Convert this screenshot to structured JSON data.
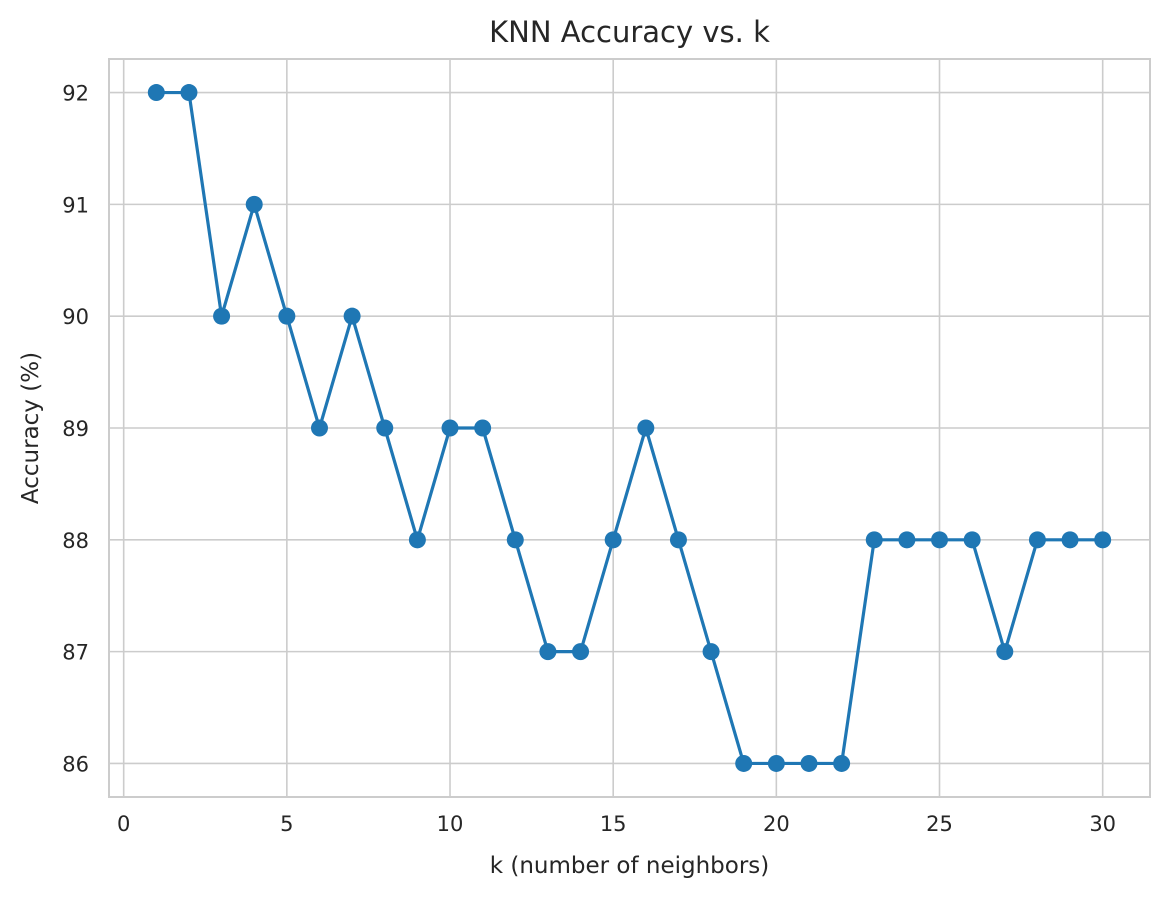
{
  "chart_data": {
    "type": "line",
    "title": "KNN Accuracy vs. k",
    "xlabel": "k (number of neighbors)",
    "ylabel": "Accuracy (%)",
    "xlim": [
      -0.45,
      31.45
    ],
    "ylim": [
      85.7,
      92.3
    ],
    "xticks": [
      0,
      5,
      10,
      15,
      20,
      25,
      30
    ],
    "yticks": [
      86,
      87,
      88,
      89,
      90,
      91,
      92
    ],
    "grid": true,
    "color": "#1f77b4",
    "marker": "circle",
    "x": [
      1,
      2,
      3,
      4,
      5,
      6,
      7,
      8,
      9,
      10,
      11,
      12,
      13,
      14,
      15,
      16,
      17,
      18,
      19,
      20,
      21,
      22,
      23,
      24,
      25,
      26,
      27,
      28,
      29,
      30
    ],
    "y": [
      92,
      92,
      90,
      91,
      90,
      89,
      90,
      89,
      88,
      89,
      89,
      88,
      87,
      87,
      88,
      89,
      88,
      87,
      86,
      86,
      86,
      86,
      88,
      88,
      88,
      88,
      87,
      88,
      88,
      88
    ]
  }
}
